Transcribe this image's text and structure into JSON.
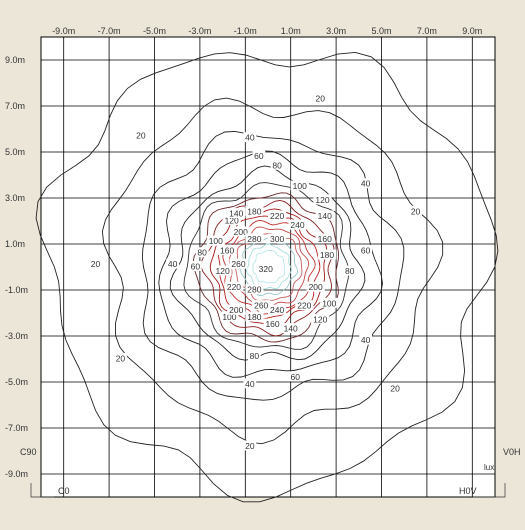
{
  "chart_data": {
    "type": "contour",
    "title": "",
    "unit_label": "lux",
    "x_ticks": [
      "-9.0m",
      "-7.0m",
      "-5.0m",
      "-3.0m",
      "-1.0m",
      "1.0m",
      "3.0m",
      "5.0m",
      "7.0m",
      "9.0m"
    ],
    "y_ticks": [
      "9.0m",
      "7.0m",
      "5.0m",
      "3.0m",
      "1.0m",
      "-1.0m",
      "-3.0m",
      "-5.0m",
      "-7.0m",
      "-9.0m"
    ],
    "xlim": [
      -10,
      10
    ],
    "ylim": [
      -10,
      10
    ],
    "grid": true,
    "corner_labels": {
      "c90": "C90",
      "c0": "C0",
      "v0h": "V0H",
      "h0v": "H0V"
    },
    "contours": [
      {
        "level": 20,
        "color": "#222222",
        "radius": 9.7
      },
      {
        "level": 40,
        "color": "#222222",
        "radius": 7.1
      },
      {
        "level": 60,
        "color": "#222222",
        "radius": 5.7
      },
      {
        "level": 80,
        "color": "#222222",
        "radius": 4.75
      },
      {
        "level": 100,
        "color": "#222222",
        "radius": 4.05
      },
      {
        "level": 120,
        "color": "#333333",
        "radius": 3.55
      },
      {
        "level": 140,
        "color": "#6b2a2a",
        "radius": 3.15
      },
      {
        "level": 160,
        "color": "#8a1f1f",
        "radius": 2.8
      },
      {
        "level": 180,
        "color": "#a01818",
        "radius": 2.5
      },
      {
        "level": 200,
        "color": "#b82020",
        "radius": 2.2
      },
      {
        "level": 220,
        "color": "#c03030",
        "radius": 1.95
      },
      {
        "level": 240,
        "color": "#c44848",
        "radius": 1.7
      },
      {
        "level": 260,
        "color": "#c86060",
        "radius": 1.45
      },
      {
        "level": 280,
        "color": "#9ac8c8",
        "radius": 1.2
      },
      {
        "level": 300,
        "color": "#a6dcdc",
        "radius": 0.95
      },
      {
        "level": 320,
        "color": "#b8e8e8",
        "radius": 0.7
      }
    ],
    "contour_labels": [
      {
        "text": "20",
        "x": 2.3,
        "y": 7.3
      },
      {
        "text": "20",
        "x": -5.6,
        "y": 5.7
      },
      {
        "text": "20",
        "x": -7.6,
        "y": 0.1
      },
      {
        "text": "20",
        "x": 6.5,
        "y": 2.4
      },
      {
        "text": "20",
        "x": -6.5,
        "y": -4.0
      },
      {
        "text": "20",
        "x": 5.6,
        "y": -5.3
      },
      {
        "text": "20",
        "x": -0.8,
        "y": -7.8
      },
      {
        "text": "40",
        "x": -0.8,
        "y": 5.6
      },
      {
        "text": "40",
        "x": 4.3,
        "y": 3.6
      },
      {
        "text": "40",
        "x": -4.2,
        "y": 0.1
      },
      {
        "text": "40",
        "x": 4.3,
        "y": -3.2
      },
      {
        "text": "40",
        "x": -0.8,
        "y": -5.1
      },
      {
        "text": "60",
        "x": -0.4,
        "y": 4.8
      },
      {
        "text": "60",
        "x": -3.2,
        "y": 0.0
      },
      {
        "text": "60",
        "x": 4.3,
        "y": 0.7
      },
      {
        "text": "60",
        "x": 1.2,
        "y": -4.8
      },
      {
        "text": "80",
        "x": 0.4,
        "y": 4.4
      },
      {
        "text": "80",
        "x": -2.9,
        "y": 0.6
      },
      {
        "text": "80",
        "x": 3.6,
        "y": -0.2
      },
      {
        "text": "80",
        "x": -0.6,
        "y": -3.9
      },
      {
        "text": "100",
        "x": 1.4,
        "y": 3.5
      },
      {
        "text": "100",
        "x": -2.3,
        "y": 1.1
      },
      {
        "text": "100",
        "x": 2.7,
        "y": -1.6
      },
      {
        "text": "100",
        "x": -1.7,
        "y": -2.2
      },
      {
        "text": "120",
        "x": 2.4,
        "y": 2.9
      },
      {
        "text": "120",
        "x": -1.6,
        "y": 2.0
      },
      {
        "text": "120",
        "x": -2.0,
        "y": -0.2
      },
      {
        "text": "120",
        "x": 2.3,
        "y": -2.3
      },
      {
        "text": "140",
        "x": -1.4,
        "y": 2.3
      },
      {
        "text": "140",
        "x": 2.5,
        "y": 2.2
      },
      {
        "text": "140",
        "x": 1.0,
        "y": -2.7
      },
      {
        "text": "160",
        "x": -1.8,
        "y": 0.7
      },
      {
        "text": "160",
        "x": 2.5,
        "y": 1.2
      },
      {
        "text": "160",
        "x": 0.2,
        "y": -2.5
      },
      {
        "text": "180",
        "x": -0.6,
        "y": 2.4
      },
      {
        "text": "180",
        "x": 2.6,
        "y": 0.5
      },
      {
        "text": "180",
        "x": -0.6,
        "y": -2.2
      },
      {
        "text": "200",
        "x": -1.2,
        "y": 1.5
      },
      {
        "text": "200",
        "x": 2.1,
        "y": -0.9
      },
      {
        "text": "200",
        "x": -1.4,
        "y": -1.9
      },
      {
        "text": "220",
        "x": 0.4,
        "y": 2.2
      },
      {
        "text": "220",
        "x": -1.5,
        "y": -0.9
      },
      {
        "text": "220",
        "x": 1.6,
        "y": -1.7
      },
      {
        "text": "240",
        "x": 1.3,
        "y": 1.8
      },
      {
        "text": "240",
        "x": 0.4,
        "y": -1.9
      },
      {
        "text": "260",
        "x": -1.3,
        "y": 0.1
      },
      {
        "text": "260",
        "x": -0.3,
        "y": -1.7
      },
      {
        "text": "280",
        "x": -0.6,
        "y": 1.2
      },
      {
        "text": "280",
        "x": -0.6,
        "y": -1.0
      },
      {
        "text": "300",
        "x": 0.4,
        "y": 1.2
      },
      {
        "text": "320",
        "x": -0.1,
        "y": -0.1
      }
    ]
  }
}
